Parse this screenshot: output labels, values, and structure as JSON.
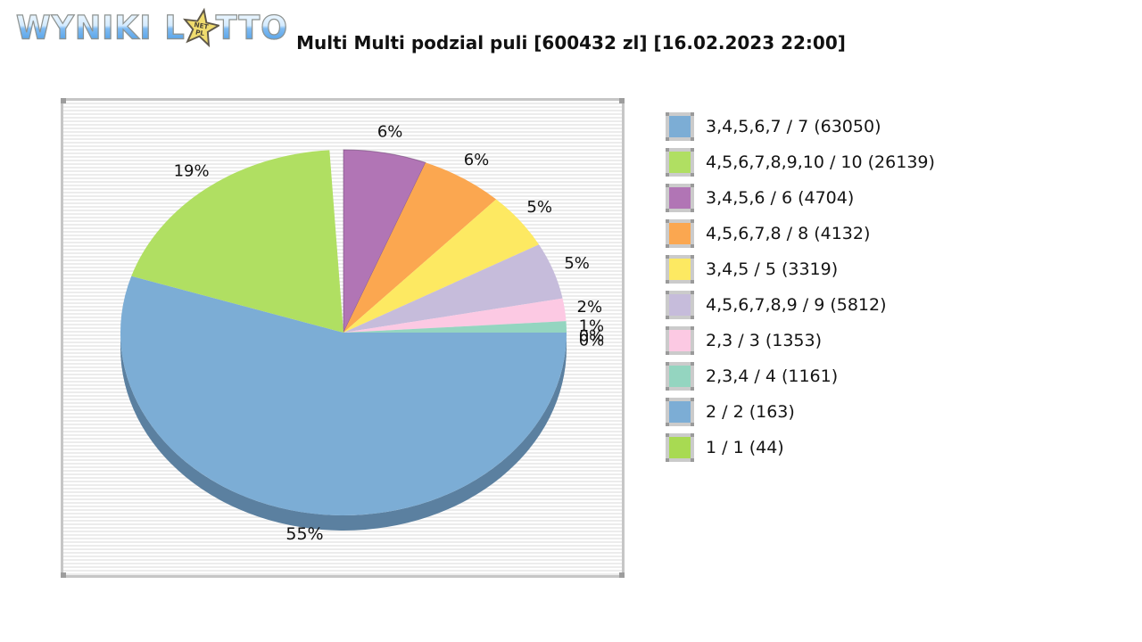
{
  "logo": {
    "word1": "WYNIKI",
    "word2_prefix": "L",
    "word2_suffix": "TTO",
    "star_text_line1": "NET",
    "star_text_line2": "PL",
    "star_color": "#f0dc6e",
    "star_outline": "#5f584a"
  },
  "header": {
    "title": "Multi Multi podzial puli [600432 zl] [16.02.2023 22:00]"
  },
  "chart_data": {
    "type": "pie",
    "title": "Multi Multi podzial puli [600432 zl] [16.02.2023 22:00]",
    "pool_label": "600432 zl",
    "draw_datetime": "16.02.2023 22:00",
    "legend_position": "right",
    "style": "3d",
    "start_angle_deg": -90,
    "direction": "clockwise",
    "gap_percent": 1,
    "side_color": "#5b80a0",
    "slices": [
      {
        "legend_text": "3,4,5,6,7 / 7 (63050)",
        "label": "3,4,5,6,7 / 7",
        "winners": 63050,
        "percent": 55,
        "percent_label": "55%",
        "color": "#7cadd5",
        "pie_order": 8
      },
      {
        "legend_text": "4,5,6,7,8,9,10 / 10 (26139)",
        "label": "4,5,6,7,8,9,10 / 10",
        "winners": 26139,
        "percent": 19,
        "percent_label": "19%",
        "color": "#b0df62",
        "pie_order": 9
      },
      {
        "legend_text": "3,4,5,6 / 6 (4704)",
        "label": "3,4,5,6 / 6",
        "winners": 4704,
        "percent": 6,
        "percent_label": "6%",
        "color": "#b175b5",
        "pie_order": 0
      },
      {
        "legend_text": "4,5,6,7,8 / 8 (4132)",
        "label": "4,5,6,7,8 / 8",
        "winners": 4132,
        "percent": 6,
        "percent_label": "6%",
        "color": "#fba750",
        "pie_order": 1
      },
      {
        "legend_text": "3,4,5 / 5 (3319)",
        "label": "3,4,5 / 5",
        "winners": 3319,
        "percent": 5,
        "percent_label": "5%",
        "color": "#fde962",
        "pie_order": 2
      },
      {
        "legend_text": "4,5,6,7,8,9 / 9 (5812)",
        "label": "4,5,6,7,8,9 / 9",
        "winners": 5812,
        "percent": 5,
        "percent_label": "5%",
        "color": "#c6bcdb",
        "pie_order": 3
      },
      {
        "legend_text": "2,3 / 3 (1353)",
        "label": "2,3 / 3",
        "winners": 1353,
        "percent": 2,
        "percent_label": "2%",
        "color": "#fcc9e3",
        "pie_order": 4
      },
      {
        "legend_text": "2,3,4 / 4 (1161)",
        "label": "2,3,4 / 4",
        "winners": 1161,
        "percent": 1,
        "percent_label": "1%",
        "color": "#94d5c0",
        "pie_order": 5
      },
      {
        "legend_text": "2 / 2 (163)",
        "label": "2 / 2",
        "winners": 163,
        "percent": 0,
        "percent_label": "0%",
        "color": "#7cadd5",
        "pie_order": 6
      },
      {
        "legend_text": "1 / 1 (44)",
        "label": "1 / 1",
        "winners": 44,
        "percent": 0,
        "percent_label": "0%",
        "color": "#a8da52",
        "pie_order": 7
      }
    ]
  }
}
